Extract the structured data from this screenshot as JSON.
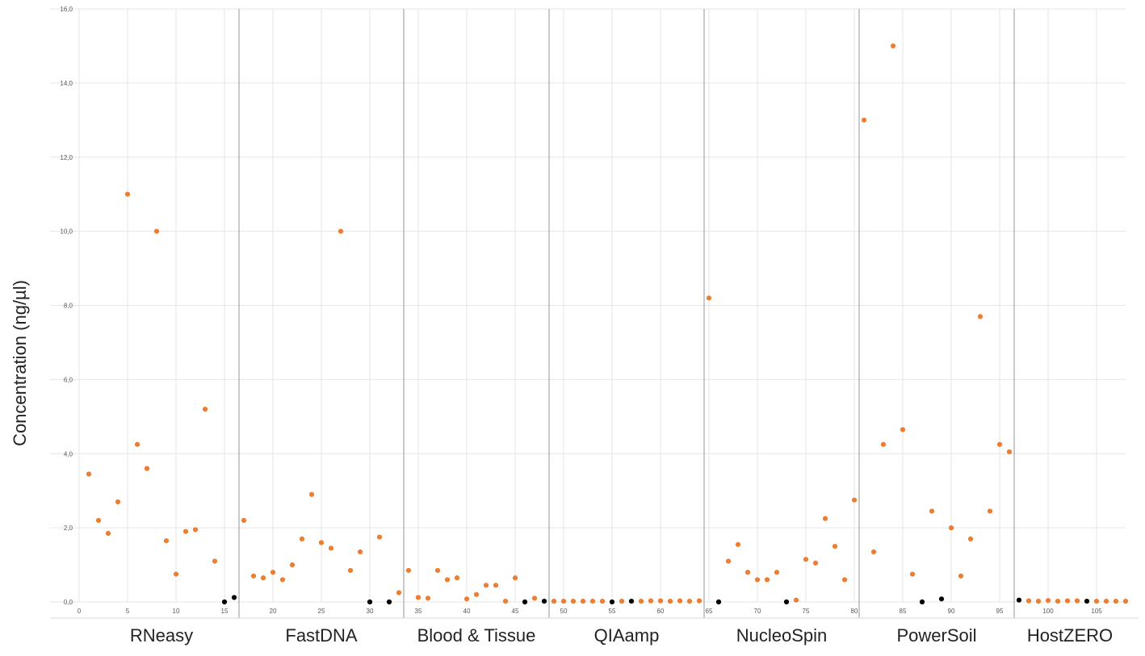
{
  "chart_data": {
    "type": "scatter",
    "ylabel": "Concentration (ng/µl)",
    "xlabel": "",
    "xlim": [
      0,
      108
    ],
    "ylim": [
      0,
      16
    ],
    "y_ticks": [
      "0,0",
      "2,0",
      "4,0",
      "6,0",
      "8,0",
      "10,0",
      "12,0",
      "14,0",
      "16,0"
    ],
    "x_ticks": [
      "0",
      "5",
      "10",
      "15",
      "20",
      "25",
      "30",
      "35",
      "40",
      "45",
      "50",
      "55",
      "60",
      "65",
      "70",
      "75",
      "80",
      "85",
      "90",
      "95",
      "100",
      "105"
    ],
    "grid": true,
    "colors": {
      "sample": "#ED7D31",
      "control": "#000000",
      "divider": "#A6A6A6",
      "grid": "#E6E6E6"
    },
    "groups": [
      {
        "label": "RNeasy",
        "x_start": 0.5,
        "x_end": 16.5
      },
      {
        "label": "FastDNA",
        "x_start": 16.5,
        "x_end": 33.5
      },
      {
        "label": "Blood & Tissue",
        "x_start": 33.5,
        "x_end": 48.5
      },
      {
        "label": "QIAamp",
        "x_start": 48.5,
        "x_end": 64.5
      },
      {
        "label": "NucleoSpin",
        "x_start": 64.5,
        "x_end": 80.5
      },
      {
        "label": "PowerSoil",
        "x_start": 80.5,
        "x_end": 96.5
      },
      {
        "label": "HostZERO",
        "x_start": 96.5,
        "x_end": 108
      }
    ],
    "series": [
      {
        "kind": "sample",
        "points": [
          [
            1,
            3.45
          ],
          [
            2,
            2.2
          ],
          [
            3,
            1.85
          ],
          [
            4,
            2.7
          ],
          [
            5,
            11.0
          ],
          [
            6,
            4.25
          ],
          [
            7,
            3.6
          ],
          [
            8,
            10.0
          ],
          [
            9,
            1.65
          ],
          [
            10,
            0.75
          ],
          [
            11,
            1.9
          ],
          [
            12,
            1.95
          ],
          [
            13,
            5.2
          ],
          [
            14,
            1.1
          ],
          [
            17,
            2.2
          ],
          [
            18,
            0.7
          ],
          [
            19,
            0.65
          ],
          [
            20,
            0.8
          ],
          [
            21,
            0.6
          ],
          [
            22,
            1.0
          ],
          [
            23,
            1.7
          ],
          [
            24,
            2.9
          ],
          [
            25,
            1.6
          ],
          [
            26,
            1.45
          ],
          [
            27,
            10.0
          ],
          [
            28,
            0.85
          ],
          [
            29,
            1.35
          ],
          [
            31,
            1.75
          ],
          [
            33,
            0.25
          ],
          [
            34,
            0.85
          ],
          [
            35,
            0.12
          ],
          [
            36,
            0.1
          ],
          [
            37,
            0.85
          ],
          [
            38,
            0.6
          ],
          [
            39,
            0.65
          ],
          [
            40,
            0.08
          ],
          [
            41,
            0.2
          ],
          [
            42,
            0.45
          ],
          [
            43,
            0.45
          ],
          [
            44,
            0.02
          ],
          [
            45,
            0.65
          ],
          [
            47,
            0.1
          ],
          [
            49,
            0.02
          ],
          [
            50,
            0.02
          ],
          [
            51,
            0.02
          ],
          [
            52,
            0.02
          ],
          [
            53,
            0.02
          ],
          [
            54,
            0.02
          ],
          [
            56,
            0.02
          ],
          [
            58,
            0.02
          ],
          [
            59,
            0.03
          ],
          [
            60,
            0.03
          ],
          [
            61,
            0.02
          ],
          [
            62,
            0.03
          ],
          [
            63,
            0.02
          ],
          [
            64,
            0.03
          ],
          [
            65,
            8.2
          ],
          [
            67,
            1.1
          ],
          [
            68,
            1.55
          ],
          [
            69,
            0.8
          ],
          [
            70,
            0.6
          ],
          [
            71,
            0.6
          ],
          [
            72,
            0.8
          ],
          [
            74,
            0.05
          ],
          [
            75,
            1.15
          ],
          [
            76,
            1.05
          ],
          [
            77,
            2.25
          ],
          [
            78,
            1.5
          ],
          [
            79,
            0.6
          ],
          [
            80,
            2.75
          ],
          [
            81,
            13.0
          ],
          [
            82,
            1.35
          ],
          [
            83,
            4.25
          ],
          [
            84,
            15.0
          ],
          [
            85,
            4.65
          ],
          [
            86,
            0.75
          ],
          [
            88,
            2.45
          ],
          [
            90,
            2.0
          ],
          [
            91,
            0.7
          ],
          [
            92,
            1.7
          ],
          [
            93,
            7.7
          ],
          [
            94,
            2.45
          ],
          [
            95,
            4.25
          ],
          [
            96,
            4.05
          ],
          [
            98,
            0.03
          ],
          [
            99,
            0.02
          ],
          [
            100,
            0.04
          ],
          [
            101,
            0.02
          ],
          [
            102,
            0.03
          ],
          [
            103,
            0.03
          ],
          [
            105,
            0.02
          ],
          [
            106,
            0.02
          ],
          [
            107,
            0.02
          ],
          [
            108,
            0.02
          ]
        ]
      },
      {
        "kind": "control",
        "points": [
          [
            15,
            0.0
          ],
          [
            16,
            0.12
          ],
          [
            30,
            0.0
          ],
          [
            32,
            0.0
          ],
          [
            46,
            0.0
          ],
          [
            48,
            0.02
          ],
          [
            55,
            0.0
          ],
          [
            57,
            0.02
          ],
          [
            66,
            0.0
          ],
          [
            73,
            0.0
          ],
          [
            87,
            0.0
          ],
          [
            89,
            0.08
          ],
          [
            97,
            0.05
          ],
          [
            104,
            0.02
          ]
        ]
      }
    ]
  }
}
